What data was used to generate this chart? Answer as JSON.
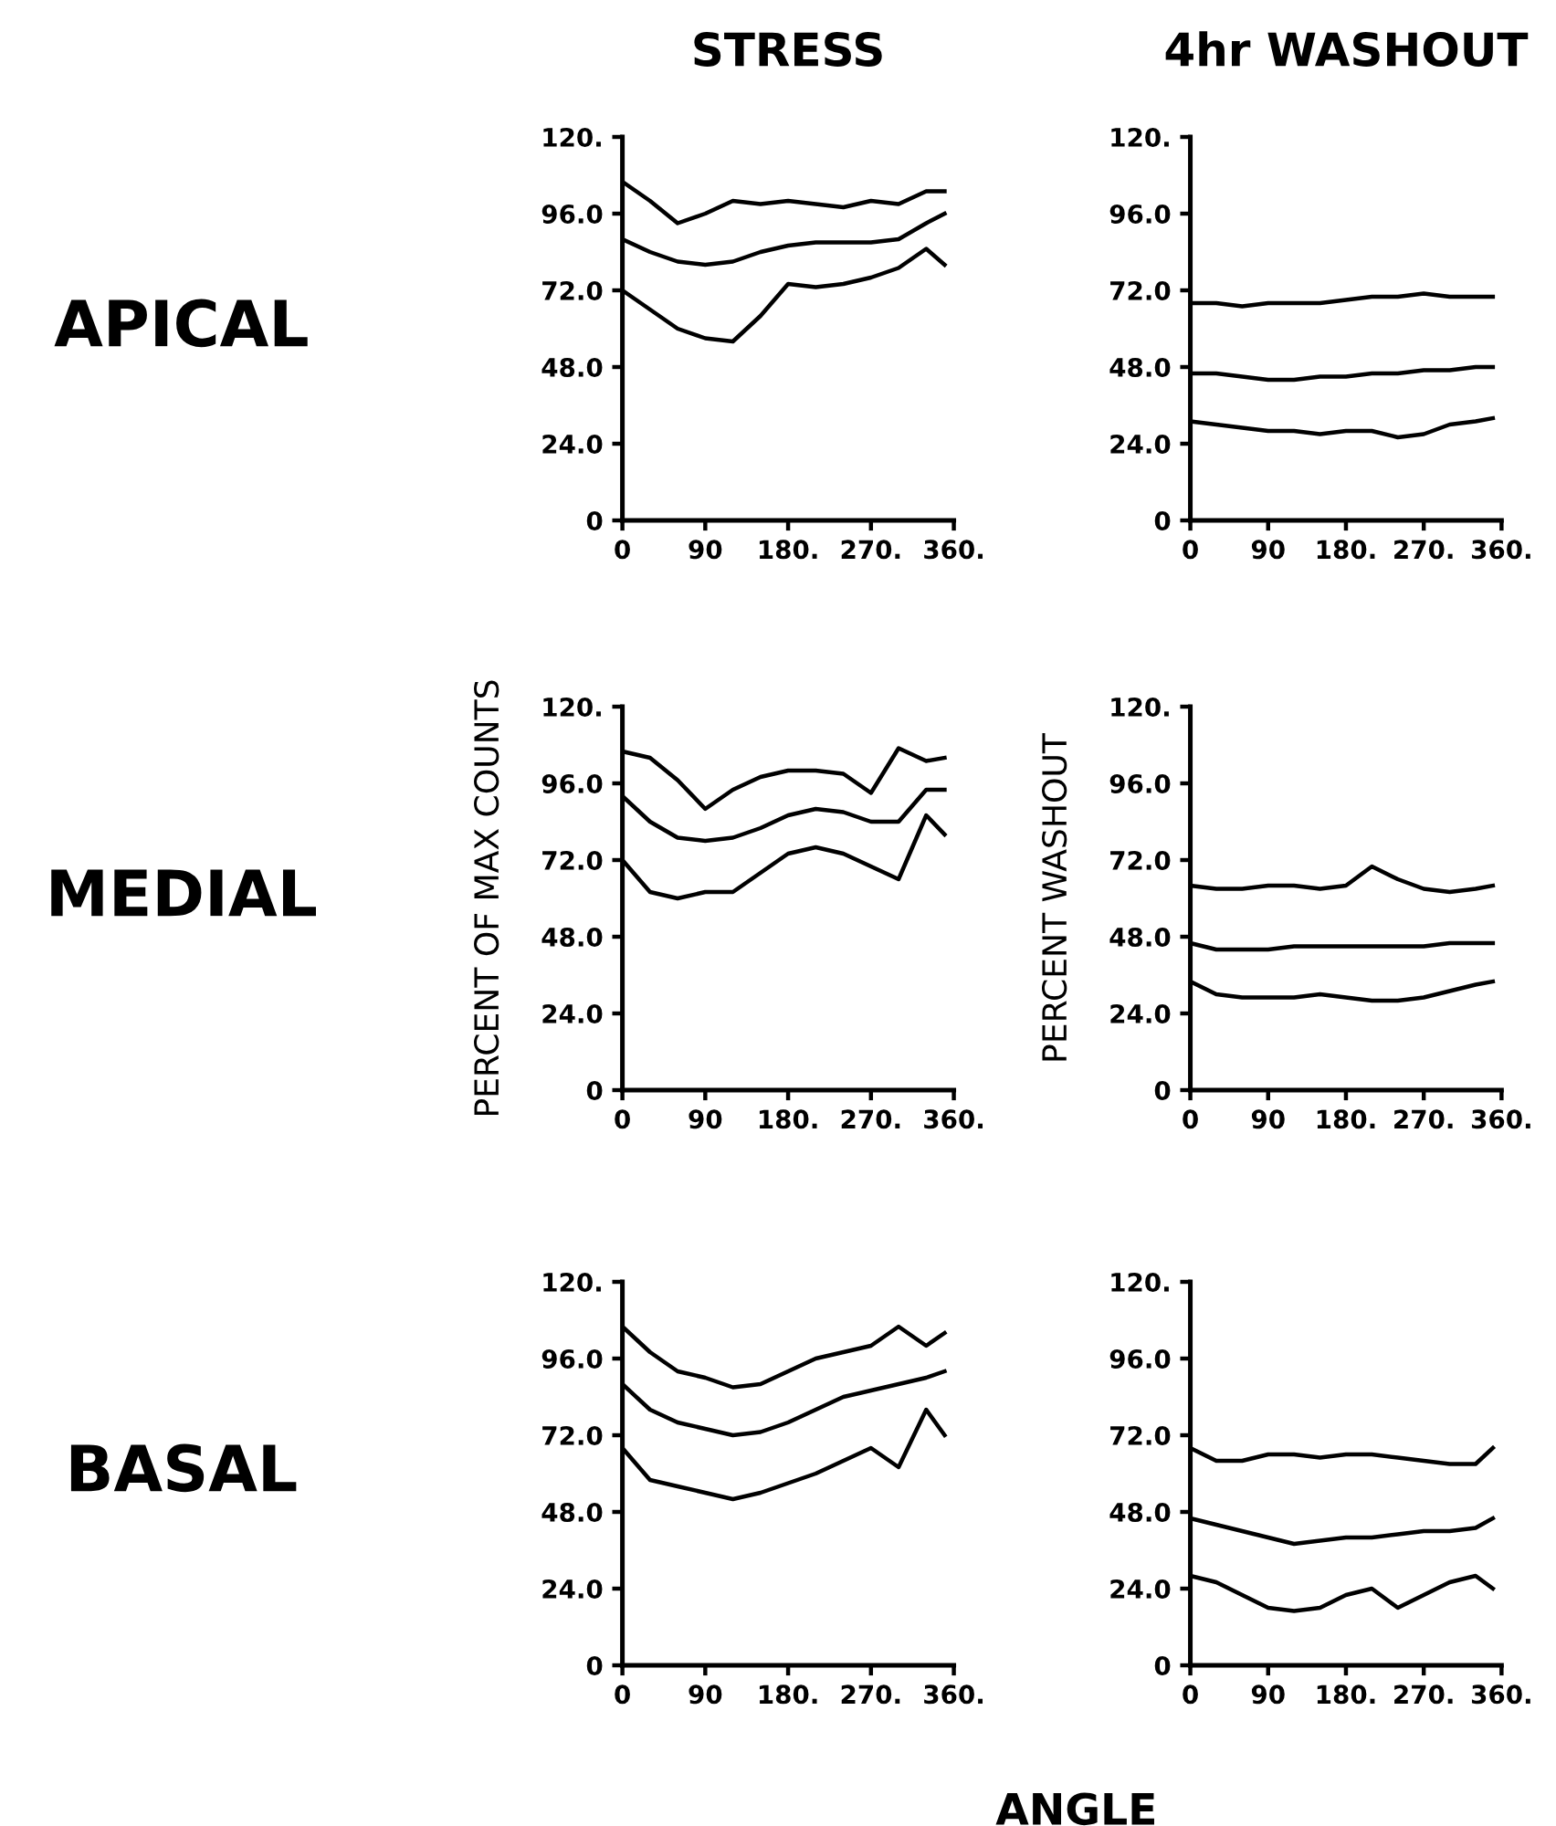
{
  "chart_data": [
    {
      "type": "line",
      "title": "STRESS",
      "annotations": [
        "APICAL"
      ],
      "x": [
        0,
        30,
        60,
        90,
        120,
        150,
        180,
        210,
        240,
        270,
        300,
        330,
        350
      ],
      "xlim": [
        0,
        360
      ],
      "ylim": [
        0,
        120
      ],
      "xticks": [
        0,
        90,
        {
          "value": 180,
          "label": "180."
        },
        {
          "value": 270,
          "label": "270."
        },
        {
          "value": 360,
          "label": "360."
        }
      ],
      "yticks": [
        0,
        {
          "value": 24,
          "label": "24.0"
        },
        {
          "value": 48,
          "label": "48.0"
        },
        {
          "value": 72,
          "label": "72.0"
        },
        {
          "value": 96,
          "label": "96.0"
        },
        {
          "value": 120,
          "label": "120."
        }
      ],
      "grid": false,
      "series": [
        {
          "color": "#000000",
          "values": [
            106,
            100,
            93,
            96,
            100,
            99,
            100,
            99,
            98,
            100,
            99,
            103,
            103
          ]
        },
        {
          "color": "#000000",
          "values": [
            88,
            84,
            81,
            80,
            81,
            84,
            86,
            87,
            87,
            87,
            88,
            93,
            96
          ]
        },
        {
          "color": "#000000",
          "values": [
            72,
            66,
            60,
            57,
            56,
            64,
            74,
            73,
            74,
            76,
            79,
            85,
            80
          ]
        }
      ]
    },
    {
      "type": "line",
      "title": "4hr WASHOUT",
      "x": [
        0,
        30,
        60,
        90,
        120,
        150,
        180,
        210,
        240,
        270,
        300,
        330,
        350
      ],
      "xlim": [
        0,
        360
      ],
      "ylim": [
        0,
        120
      ],
      "xticks": [
        0,
        90,
        {
          "value": 180,
          "label": "180."
        },
        {
          "value": 270,
          "label": "270."
        },
        {
          "value": 360,
          "label": "360."
        }
      ],
      "yticks": [
        0,
        {
          "value": 24,
          "label": "24.0"
        },
        {
          "value": 48,
          "label": "48.0"
        },
        {
          "value": 72,
          "label": "72.0"
        },
        {
          "value": 96,
          "label": "96.0"
        },
        {
          "value": 120,
          "label": "120."
        }
      ],
      "grid": false,
      "series": [
        {
          "color": "#000000",
          "values": [
            68,
            68,
            67,
            68,
            68,
            68,
            69,
            70,
            70,
            71,
            70,
            70,
            70
          ]
        },
        {
          "color": "#000000",
          "values": [
            46,
            46,
            45,
            44,
            44,
            45,
            45,
            46,
            46,
            47,
            47,
            48,
            48
          ]
        },
        {
          "color": "#000000",
          "values": [
            31,
            30,
            29,
            28,
            28,
            27,
            28,
            28,
            26,
            27,
            30,
            31,
            32
          ]
        }
      ]
    },
    {
      "type": "line",
      "ylabel": "PERCENT OF MAX COUNTS",
      "annotations": [
        "MEDIAL"
      ],
      "x": [
        0,
        30,
        60,
        90,
        120,
        150,
        180,
        210,
        240,
        270,
        300,
        330,
        350
      ],
      "xlim": [
        0,
        360
      ],
      "ylim": [
        0,
        120
      ],
      "xticks": [
        0,
        90,
        {
          "value": 180,
          "label": "180."
        },
        {
          "value": 270,
          "label": "270."
        },
        {
          "value": 360,
          "label": "360."
        }
      ],
      "yticks": [
        0,
        {
          "value": 24,
          "label": "24.0"
        },
        {
          "value": 48,
          "label": "48.0"
        },
        {
          "value": 72,
          "label": "72.0"
        },
        {
          "value": 96,
          "label": "96.0"
        },
        {
          "value": 120,
          "label": "120."
        }
      ],
      "grid": false,
      "series": [
        {
          "color": "#000000",
          "values": [
            106,
            104,
            97,
            88,
            94,
            98,
            100,
            100,
            99,
            93,
            107,
            103,
            104
          ]
        },
        {
          "color": "#000000",
          "values": [
            92,
            84,
            79,
            78,
            79,
            82,
            86,
            88,
            87,
            84,
            84,
            94,
            94
          ]
        },
        {
          "color": "#000000",
          "values": [
            72,
            62,
            60,
            62,
            62,
            68,
            74,
            76,
            74,
            70,
            66,
            86,
            80
          ]
        }
      ]
    },
    {
      "type": "line",
      "ylabel": "PERCENT WASHOUT",
      "x": [
        0,
        30,
        60,
        90,
        120,
        150,
        180,
        210,
        240,
        270,
        300,
        330,
        350
      ],
      "xlim": [
        0,
        360
      ],
      "ylim": [
        0,
        120
      ],
      "xticks": [
        0,
        90,
        {
          "value": 180,
          "label": "180."
        },
        {
          "value": 270,
          "label": "270."
        },
        {
          "value": 360,
          "label": "360."
        }
      ],
      "yticks": [
        0,
        {
          "value": 24,
          "label": "24.0"
        },
        {
          "value": 48,
          "label": "48.0"
        },
        {
          "value": 72,
          "label": "72.0"
        },
        {
          "value": 96,
          "label": "96.0"
        },
        {
          "value": 120,
          "label": "120."
        }
      ],
      "grid": false,
      "series": [
        {
          "color": "#000000",
          "values": [
            64,
            63,
            63,
            64,
            64,
            63,
            64,
            70,
            66,
            63,
            62,
            63,
            64
          ]
        },
        {
          "color": "#000000",
          "values": [
            46,
            44,
            44,
            44,
            45,
            45,
            45,
            45,
            45,
            45,
            46,
            46,
            46
          ]
        },
        {
          "color": "#000000",
          "values": [
            34,
            30,
            29,
            29,
            29,
            30,
            29,
            28,
            28,
            29,
            31,
            33,
            34
          ]
        }
      ]
    },
    {
      "type": "line",
      "xlabel": "ANGLE",
      "annotations": [
        "BASAL"
      ],
      "x": [
        0,
        30,
        60,
        90,
        120,
        150,
        180,
        210,
        240,
        270,
        300,
        330,
        350
      ],
      "xlim": [
        0,
        360
      ],
      "ylim": [
        0,
        120
      ],
      "xticks": [
        0,
        90,
        {
          "value": 180,
          "label": "180."
        },
        {
          "value": 270,
          "label": "270."
        },
        {
          "value": 360,
          "label": "360."
        }
      ],
      "yticks": [
        0,
        {
          "value": 24,
          "label": "24.0"
        },
        {
          "value": 48,
          "label": "48.0"
        },
        {
          "value": 72,
          "label": "72.0"
        },
        {
          "value": 96,
          "label": "96.0"
        },
        {
          "value": 120,
          "label": "120."
        }
      ],
      "grid": false,
      "series": [
        {
          "color": "#000000",
          "values": [
            106,
            98,
            92,
            90,
            87,
            88,
            92,
            96,
            98,
            100,
            106,
            100,
            104
          ]
        },
        {
          "color": "#000000",
          "values": [
            88,
            80,
            76,
            74,
            72,
            73,
            76,
            80,
            84,
            86,
            88,
            90,
            92
          ]
        },
        {
          "color": "#000000",
          "values": [
            68,
            58,
            56,
            54,
            52,
            54,
            57,
            60,
            64,
            68,
            62,
            80,
            72
          ]
        }
      ]
    },
    {
      "type": "line",
      "x": [
        0,
        30,
        60,
        90,
        120,
        150,
        180,
        210,
        240,
        270,
        300,
        330,
        350
      ],
      "xlim": [
        0,
        360
      ],
      "ylim": [
        0,
        120
      ],
      "xticks": [
        0,
        90,
        {
          "value": 180,
          "label": "180."
        },
        {
          "value": 270,
          "label": "270."
        },
        {
          "value": 360,
          "label": "360."
        }
      ],
      "yticks": [
        0,
        {
          "value": 24,
          "label": "24.0"
        },
        {
          "value": 48,
          "label": "48.0"
        },
        {
          "value": 72,
          "label": "72.0"
        },
        {
          "value": 96,
          "label": "96.0"
        },
        {
          "value": 120,
          "label": "120."
        }
      ],
      "grid": false,
      "series": [
        {
          "color": "#000000",
          "values": [
            68,
            64,
            64,
            66,
            66,
            65,
            66,
            66,
            65,
            64,
            63,
            63,
            68
          ]
        },
        {
          "color": "#000000",
          "values": [
            46,
            44,
            42,
            40,
            38,
            39,
            40,
            40,
            41,
            42,
            42,
            43,
            46
          ]
        },
        {
          "color": "#000000",
          "values": [
            28,
            26,
            22,
            18,
            17,
            18,
            22,
            24,
            18,
            22,
            26,
            28,
            24
          ]
        }
      ]
    }
  ]
}
